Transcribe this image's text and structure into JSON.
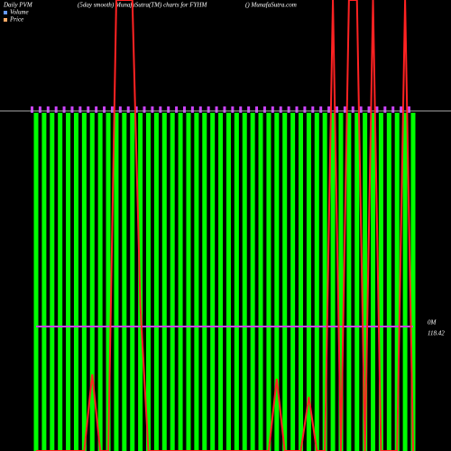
{
  "chart_data": {
    "type": "bar",
    "title": "Daily PVM",
    "subtitle": "(5day smooth) MunafaSutra(TM) charts for FYHM",
    "source": "() MunafaSutra.com",
    "volume_label": "0M",
    "price_label": "118.42",
    "categories": [
      null,
      null,
      null,
      null,
      null,
      null,
      null,
      null,
      null,
      null,
      null,
      null,
      null,
      null,
      null,
      null,
      null,
      null,
      null,
      null,
      null,
      null,
      null,
      null,
      null,
      null,
      null,
      null,
      null,
      null,
      null,
      null,
      null,
      null,
      null,
      null,
      null,
      null,
      null,
      null,
      null,
      null,
      null,
      null,
      null,
      null,
      null,
      null
    ],
    "volume": {
      "name": "Volume",
      "color": "#00ff00",
      "legend_color": "#6699ff",
      "values": [
        1,
        1,
        1,
        1,
        1,
        1,
        1,
        1,
        1,
        1,
        1,
        1,
        1,
        1,
        1,
        1,
        1,
        1,
        1,
        1,
        1,
        1,
        1,
        1,
        1,
        1,
        1,
        1,
        1,
        1,
        1,
        1,
        1,
        1,
        1,
        1,
        1,
        1,
        1,
        1,
        1,
        1,
        1,
        1,
        1,
        1,
        1,
        1
      ]
    },
    "ylim": [
      0,
      1
    ],
    "series": [
      {
        "name": "Price",
        "color": "#cc44ff",
        "legend_color": "#ffaa66",
        "values": [
          118.42,
          118.42,
          118.42,
          118.42,
          118.42,
          118.42,
          118.42,
          118.42,
          118.42,
          118.42,
          118.42,
          118.42,
          118.42,
          118.42,
          118.42,
          118.42,
          118.42,
          118.42,
          118.42,
          118.42,
          118.42,
          118.42,
          118.42,
          118.42,
          118.42,
          118.42,
          118.42,
          118.42,
          118.42,
          118.42,
          118.42,
          118.42,
          118.42,
          118.42,
          118.42,
          118.42,
          118.42,
          118.42,
          118.42,
          118.42,
          118.42,
          118.42,
          118.42,
          118.42,
          118.42,
          118.42,
          118.42,
          118.42
        ]
      },
      {
        "color": "#ff2222",
        "values": [
          110,
          110,
          110,
          110,
          110,
          110,
          110,
          115.19,
          110,
          110,
          140.5,
          140.5,
          140.5,
          119.76,
          110,
          110,
          110,
          110,
          110,
          110,
          110,
          110,
          110,
          110,
          110,
          110,
          110,
          110,
          110,
          110,
          114.88,
          110,
          110,
          110,
          113.66,
          110,
          110,
          140.5,
          110,
          140.5,
          140.5,
          110,
          140.5,
          110,
          110,
          110,
          140.5,
          110
        ]
      }
    ],
    "price_ylim": [
      110,
      140.5
    ]
  }
}
